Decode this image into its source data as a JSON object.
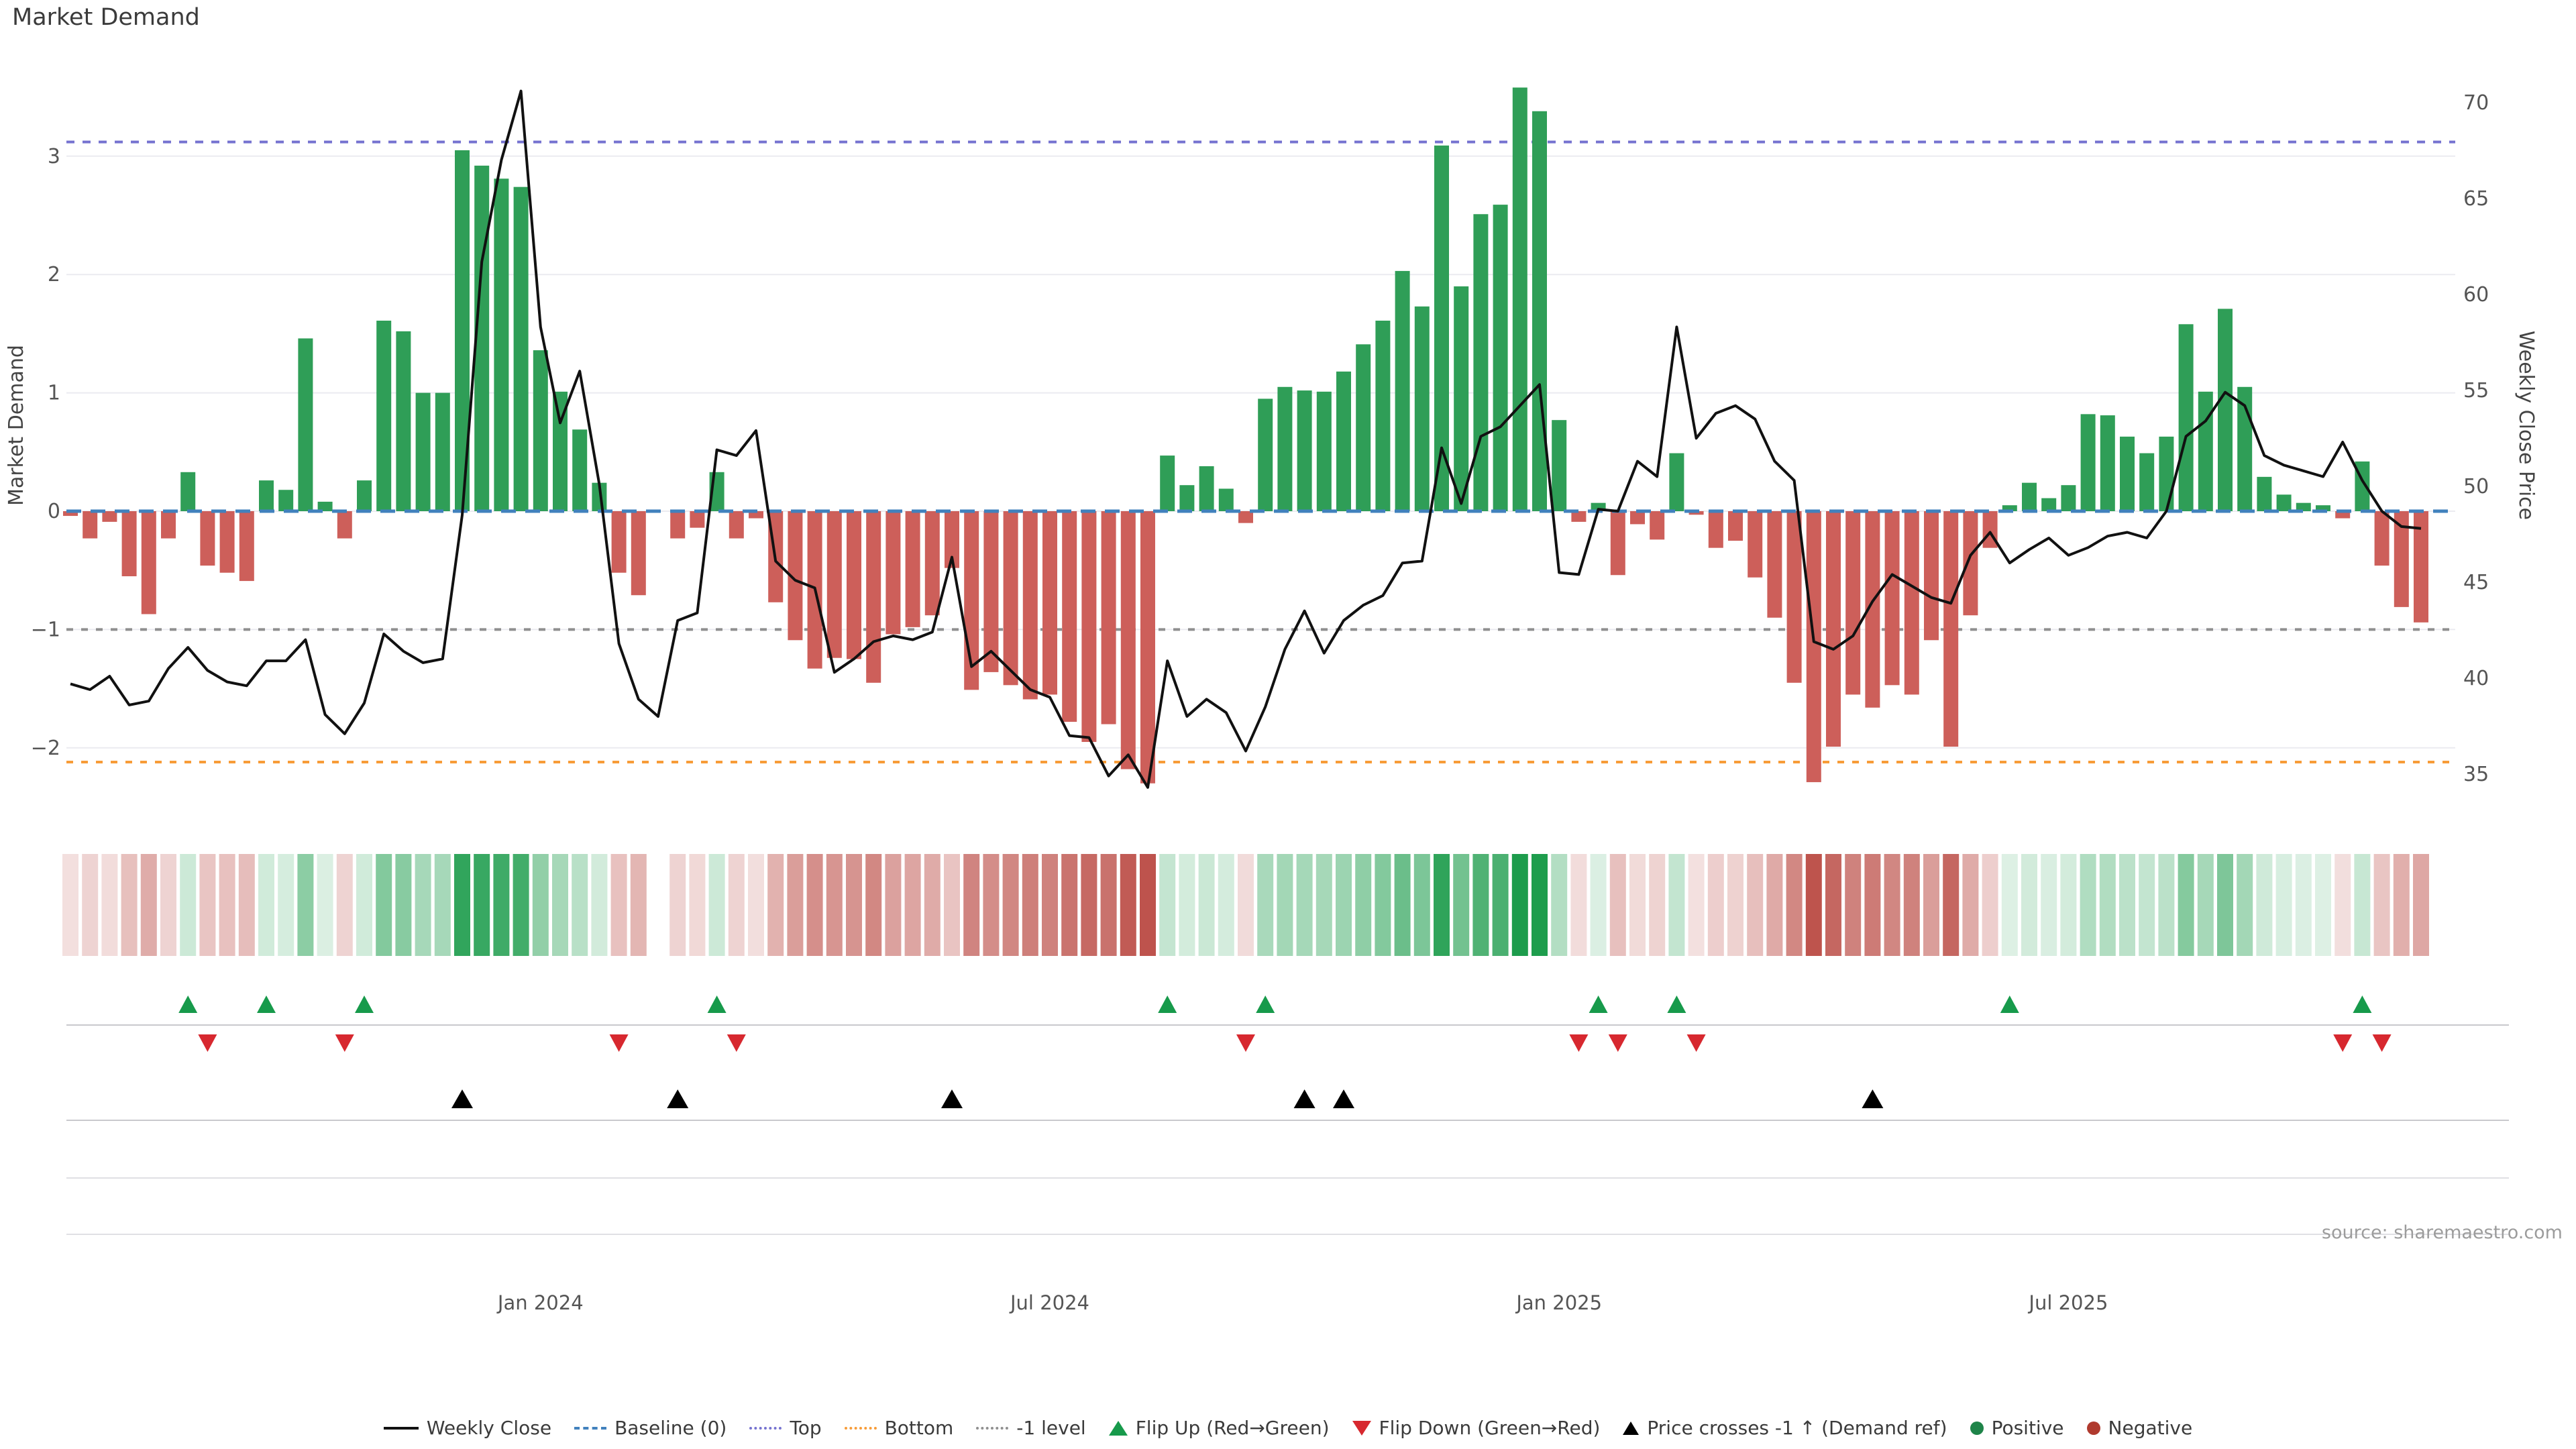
{
  "title": "Market Demand",
  "source": "source: sharemaestro.com",
  "axes": {
    "left": {
      "label": "Market Demand",
      "ticks": [
        3,
        2,
        1,
        0,
        -1,
        -2
      ]
    },
    "right": {
      "label": "Weekly Close Price",
      "ticks": [
        70,
        65,
        60,
        55,
        50,
        45,
        40,
        35
      ]
    },
    "x": {
      "ticks": [
        {
          "label": "Jan 2024",
          "week": 25
        },
        {
          "label": "Jul 2024",
          "week": 51
        },
        {
          "label": "Jan 2025",
          "week": 77
        },
        {
          "label": "Jul 2025",
          "week": 103
        }
      ],
      "quarter_gridline_weeks": [
        12,
        25,
        38,
        51,
        64,
        77,
        90,
        103,
        116
      ]
    }
  },
  "legend": [
    {
      "icon": "line-icon",
      "label": "Weekly Close"
    },
    {
      "icon": "baseline-icon",
      "label": "Baseline (0)"
    },
    {
      "icon": "top-line-icon",
      "label": "Top"
    },
    {
      "icon": "bottom-line-icon",
      "label": "Bottom"
    },
    {
      "icon": "minus1-line-icon",
      "label": "-1 level"
    },
    {
      "icon": "flip-up-icon",
      "label": "Flip Up (Red→Green)"
    },
    {
      "icon": "flip-down-icon",
      "label": "Flip Down (Green→Red)"
    },
    {
      "icon": "price-cross-icon",
      "label": "Price crosses -1 ↑ (Demand ref)"
    },
    {
      "icon": "positive-dot-icon",
      "label": "Positive"
    },
    {
      "icon": "negative-dot-icon",
      "label": "Negative"
    }
  ],
  "colors": {
    "bar_positive": "#2f9e57",
    "bar_negative": "#cd5f5a",
    "heat_positive_deep": "#1d9c4c",
    "heat_negative_deep": "#b94740",
    "price_line": "#111111",
    "baseline": "#4181bd",
    "top_level": "#7673d0",
    "bottom_level": "#f79c38",
    "minus1_level": "#8f8f8f",
    "flip_up_marker": "#179a4b",
    "flip_down_marker": "#d7282f",
    "price_cross_marker": "#000000",
    "grid": "#ebebf0",
    "separator": "#c9c9cd",
    "sub_grid": "#e0e0e4",
    "tick_text": "#555555"
  },
  "chart_data": {
    "type": "combo",
    "subtype": [
      "bar",
      "line",
      "heatmap",
      "event-markers"
    ],
    "title": "Market Demand",
    "x_unit": "week",
    "weeks": 121,
    "xlabel": "",
    "ylabel_left": "Market Demand",
    "ylabel_right": "Weekly Close Price",
    "ylim_left": [
      -2.45,
      3.9
    ],
    "ylim_right": [
      33.6,
      72.8
    ],
    "levels": {
      "baseline": 0,
      "top": 3.12,
      "bottom": -2.12,
      "minus1": -1
    },
    "grid_values_left": [
      3,
      2,
      1,
      0,
      -1,
      -2
    ],
    "legend_position": "bottom-center",
    "series": [
      {
        "name": "Market Demand",
        "type": "bar",
        "axis": "left",
        "values": [
          -0.04,
          -0.23,
          -0.09,
          -0.55,
          -0.87,
          -0.23,
          0.33,
          -0.46,
          -0.52,
          -0.59,
          0.26,
          0.18,
          1.46,
          0.08,
          -0.23,
          0.26,
          1.61,
          1.52,
          1.0,
          1.0,
          3.05,
          2.92,
          2.81,
          2.74,
          1.36,
          1.01,
          0.69,
          0.24,
          -0.52,
          -0.71,
          0.0,
          -0.23,
          -0.14,
          0.33,
          -0.23,
          -0.06,
          -0.77,
          -1.09,
          -1.33,
          -1.24,
          -1.25,
          -1.45,
          -1.04,
          -0.98,
          -0.88,
          -0.48,
          -1.51,
          -1.36,
          -1.47,
          -1.59,
          -1.55,
          -1.78,
          -1.95,
          -1.8,
          -2.18,
          -2.3,
          0.47,
          0.22,
          0.38,
          0.19,
          -0.1,
          0.95,
          1.05,
          1.02,
          1.01,
          1.18,
          1.41,
          1.61,
          2.03,
          1.73,
          3.09,
          1.9,
          2.51,
          2.59,
          3.58,
          3.38,
          0.77,
          -0.09,
          0.07,
          -0.54,
          -0.11,
          -0.24,
          0.49,
          -0.03,
          -0.31,
          -0.25,
          -0.56,
          -0.9,
          -1.45,
          -2.29,
          -1.99,
          -1.55,
          -1.66,
          -1.47,
          -1.55,
          -1.09,
          -1.99,
          -0.88,
          -0.31,
          0.05,
          0.24,
          0.11,
          0.22,
          0.82,
          0.81,
          0.63,
          0.49,
          0.63,
          1.58,
          1.01,
          1.71,
          1.05,
          0.29,
          0.14,
          0.07,
          0.05,
          -0.06,
          0.42,
          -0.46,
          -0.81,
          -0.94
        ]
      },
      {
        "name": "Weekly Close",
        "type": "line",
        "axis": "right",
        "values": [
          39.7,
          39.4,
          40.1,
          38.6,
          38.8,
          40.5,
          41.6,
          40.4,
          39.8,
          39.6,
          40.9,
          40.9,
          42.0,
          38.1,
          37.1,
          38.7,
          42.3,
          41.4,
          40.8,
          41.0,
          48.5,
          61.7,
          67.0,
          70.6,
          58.3,
          53.3,
          56.0,
          50.1,
          41.8,
          38.9,
          38.0,
          43.0,
          43.4,
          51.9,
          51.6,
          52.9,
          46.1,
          45.1,
          44.7,
          40.3,
          41.0,
          41.9,
          42.2,
          42.0,
          42.4,
          46.3,
          40.6,
          41.4,
          40.4,
          39.4,
          39.0,
          37.0,
          36.9,
          34.9,
          36.0,
          34.3,
          40.9,
          38.0,
          38.9,
          38.2,
          36.2,
          38.5,
          41.5,
          43.5,
          41.3,
          43.0,
          43.8,
          44.3,
          46.0,
          46.1,
          52.0,
          49.1,
          52.6,
          53.1,
          54.2,
          55.3,
          45.5,
          45.4,
          48.8,
          48.7,
          51.3,
          50.5,
          58.3,
          52.5,
          53.8,
          54.2,
          53.5,
          51.3,
          50.3,
          41.9,
          41.5,
          42.2,
          44.0,
          45.4,
          44.8,
          44.2,
          43.9,
          46.4,
          47.6,
          46.0,
          46.7,
          47.3,
          46.4,
          46.8,
          47.4,
          47.6,
          47.3,
          48.7,
          52.6,
          53.4,
          54.9,
          54.2,
          51.6,
          51.1,
          50.8,
          50.5,
          52.3,
          50.3,
          48.7,
          47.9,
          47.8
        ]
      }
    ],
    "heatmap": {
      "source_series": "Market Demand",
      "zero_gap_weeks": [
        31
      ]
    },
    "markers": {
      "flip_up_weeks": [
        7,
        11,
        16,
        34,
        57,
        62,
        79,
        83,
        100,
        118
      ],
      "flip_down_weeks": [
        8,
        15,
        29,
        35,
        61,
        78,
        80,
        84,
        117,
        119
      ],
      "price_cross_weeks": [
        21,
        32,
        46,
        64,
        66,
        93
      ]
    }
  }
}
